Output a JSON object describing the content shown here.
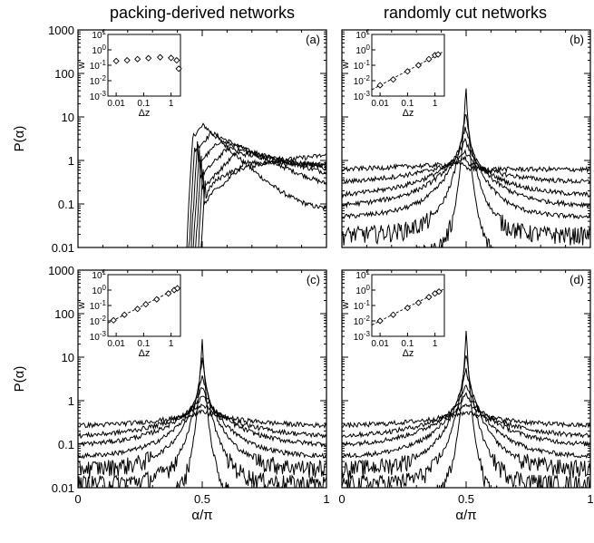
{
  "column_titles": [
    "packing-derived networks",
    "randomly cut networks"
  ],
  "chart_data": [
    {
      "type": "line",
      "panel": "(a)",
      "xlabel": "",
      "ylabel": "P(α)",
      "xlim": [
        0,
        1
      ],
      "ylim": [
        0.01,
        1000
      ],
      "yscale": "log",
      "xticks": [
        "0",
        "0.5",
        "1"
      ],
      "yticks": [
        "0.01",
        "0.1",
        "1",
        "10",
        "100",
        "1000"
      ],
      "shape": "onset",
      "num_curves": 7,
      "curve_peaks": [
        6.5,
        4.3,
        2.8,
        2.0,
        1.5,
        0.9,
        0.45
      ],
      "curve_tails": [
        0.065,
        0.1,
        0.15,
        0.22,
        0.3,
        0.75,
        1.3
      ],
      "inset": {
        "xlabel": "Δz",
        "ylabel": "w",
        "xticks": [
          "0.01",
          "0.1",
          "1"
        ],
        "yticks": [
          "10-3",
          "10-2",
          "10-1",
          "100",
          "101"
        ],
        "points": [
          [
            0.01,
            0.19
          ],
          [
            0.025,
            0.21
          ],
          [
            0.06,
            0.25
          ],
          [
            0.15,
            0.29
          ],
          [
            0.4,
            0.33
          ],
          [
            1.0,
            0.3
          ],
          [
            1.6,
            0.21
          ],
          [
            1.9,
            0.06
          ]
        ],
        "fit_line": false
      }
    },
    {
      "type": "line",
      "panel": "(b)",
      "xlabel": "",
      "ylabel": "",
      "xlim": [
        0,
        1
      ],
      "ylim": [
        0.01,
        1000
      ],
      "yscale": "log",
      "xticks": [
        "0",
        "0.5",
        "1"
      ],
      "yticks": [
        "0.01",
        "0.1",
        "1",
        "10",
        "100",
        "1000"
      ],
      "shape": "peak",
      "num_curves": 7,
      "curve_peaks": [
        43,
        12,
        5,
        2.5,
        1.4,
        0.9,
        0.65
      ],
      "curve_tails": [
        0.006,
        0.02,
        0.05,
        0.09,
        0.15,
        0.3,
        0.62
      ],
      "inset": {
        "xlabel": "Δz",
        "ylabel": "w",
        "xticks": [
          "0.01",
          "0.1",
          "1"
        ],
        "yticks": [
          "10-3",
          "10-2",
          "10-1",
          "100",
          "101"
        ],
        "points": [
          [
            0.01,
            0.005
          ],
          [
            0.03,
            0.012
          ],
          [
            0.1,
            0.04
          ],
          [
            0.25,
            0.1
          ],
          [
            0.6,
            0.25
          ],
          [
            1.0,
            0.45
          ],
          [
            1.3,
            0.5
          ]
        ],
        "fit_line": true
      }
    },
    {
      "type": "line",
      "panel": "(c)",
      "xlabel": "α/π",
      "ylabel": "P(α)",
      "xlim": [
        0,
        1
      ],
      "ylim": [
        0.01,
        1000
      ],
      "yscale": "log",
      "xticks": [
        "0",
        "0.5",
        "1"
      ],
      "yticks": [
        "0.01",
        "0.1",
        "1",
        "10",
        "100",
        "1000"
      ],
      "shape": "peak",
      "num_curves": 7,
      "curve_peaks": [
        25,
        9,
        4,
        2,
        1.3,
        0.85,
        0.55
      ],
      "curve_tails": [
        0.006,
        0.013,
        0.028,
        0.05,
        0.09,
        0.14,
        0.25
      ],
      "inset": {
        "xlabel": "Δz",
        "ylabel": "w",
        "xticks": [
          "0.01",
          "0.1",
          "1"
        ],
        "yticks": [
          "10-3",
          "10-2",
          "10-1",
          "100",
          "101"
        ],
        "points": [
          [
            0.008,
            0.011
          ],
          [
            0.02,
            0.025
          ],
          [
            0.06,
            0.06
          ],
          [
            0.12,
            0.12
          ],
          [
            0.3,
            0.25
          ],
          [
            0.8,
            0.6
          ],
          [
            1.3,
            1.0
          ],
          [
            1.7,
            1.3
          ]
        ],
        "fit_line": true
      }
    },
    {
      "type": "line",
      "panel": "(d)",
      "xlabel": "α/π",
      "ylabel": "",
      "xlim": [
        0,
        1
      ],
      "ylim": [
        0.01,
        1000
      ],
      "yscale": "log",
      "xticks": [
        "0",
        "0.5",
        "1"
      ],
      "yticks": [
        "0.01",
        "0.1",
        "1",
        "10",
        "100",
        "1000"
      ],
      "shape": "peak",
      "num_curves": 7,
      "curve_peaks": [
        42,
        12,
        5,
        2.3,
        1.4,
        0.85,
        0.55
      ],
      "curve_tails": [
        0.006,
        0.013,
        0.028,
        0.05,
        0.09,
        0.14,
        0.25
      ],
      "inset": {
        "xlabel": "Δz",
        "ylabel": "w",
        "xticks": [
          "0.01",
          "0.1",
          "1"
        ],
        "yticks": [
          "10-3",
          "10-2",
          "10-1",
          "100",
          "101"
        ],
        "points": [
          [
            0.01,
            0.01
          ],
          [
            0.03,
            0.025
          ],
          [
            0.1,
            0.07
          ],
          [
            0.25,
            0.15
          ],
          [
            0.6,
            0.35
          ],
          [
            1.0,
            0.6
          ],
          [
            1.4,
            0.8
          ]
        ],
        "fit_line": true
      }
    }
  ]
}
